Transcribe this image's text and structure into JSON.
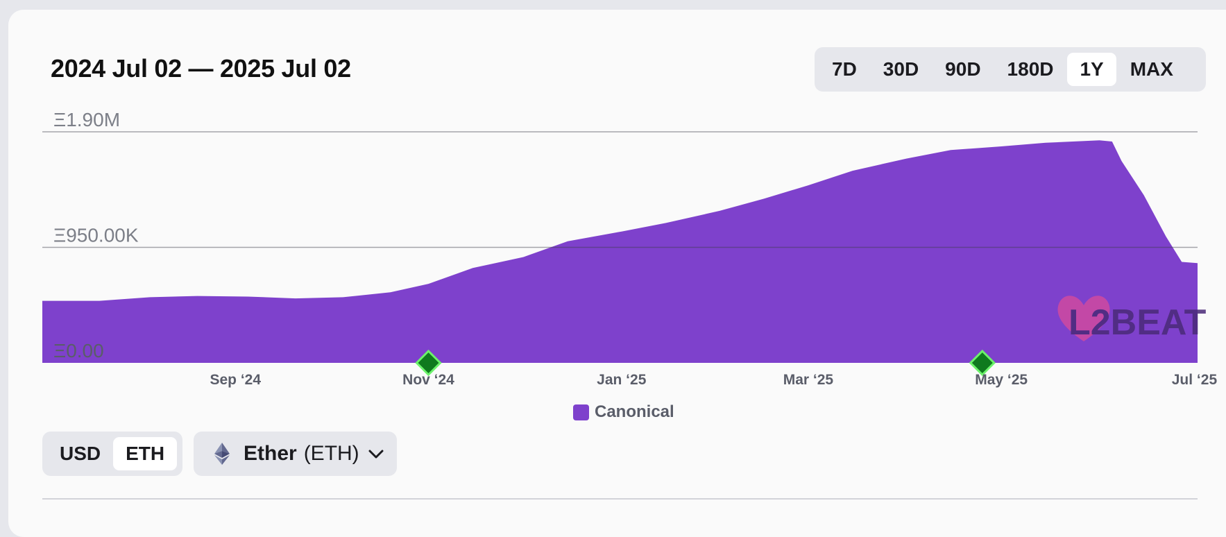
{
  "header": {
    "date_range": "2024 Jul 02 — 2025 Jul 02",
    "range_tabs": [
      {
        "label": "7D",
        "active": false
      },
      {
        "label": "30D",
        "active": false
      },
      {
        "label": "90D",
        "active": false
      },
      {
        "label": "180D",
        "active": false
      },
      {
        "label": "1Y",
        "active": true
      },
      {
        "label": "MAX",
        "active": false
      }
    ]
  },
  "chart_data": {
    "type": "area",
    "title": "",
    "xlabel": "",
    "ylabel": "",
    "y_tick_labels": [
      "Ξ1.90M",
      "Ξ950.00K",
      "Ξ0.00"
    ],
    "y_ticks": [
      1900000,
      950000,
      0
    ],
    "ylim": [
      0,
      1900000
    ],
    "x_tick_labels": [
      "Sep ‘24",
      "Nov ‘24",
      "Jan ‘25",
      "Mar ‘25",
      "May ‘25",
      "Jul ‘25"
    ],
    "x_tick_dates": [
      "2024-09-01",
      "2024-11-01",
      "2025-01-01",
      "2025-03-01",
      "2025-05-01",
      "2025-07-01"
    ],
    "xlim": [
      "2024-07-02",
      "2025-07-02"
    ],
    "grid": true,
    "legend_position": "bottom-center",
    "series": [
      {
        "name": "Canonical",
        "color": "#7e41cc",
        "x": [
          "2024-07-02",
          "2024-07-20",
          "2024-08-05",
          "2024-08-20",
          "2024-09-05",
          "2024-09-20",
          "2024-10-05",
          "2024-10-20",
          "2024-11-01",
          "2024-11-15",
          "2024-12-01",
          "2024-12-15",
          "2025-01-01",
          "2025-01-15",
          "2025-02-01",
          "2025-02-15",
          "2025-03-01",
          "2025-03-15",
          "2025-04-01",
          "2025-04-15",
          "2025-05-01",
          "2025-05-15",
          "2025-06-01",
          "2025-06-05",
          "2025-06-08",
          "2025-06-15",
          "2025-06-22",
          "2025-06-27",
          "2025-07-02"
        ],
        "values": [
          510000,
          510000,
          540000,
          550000,
          545000,
          530000,
          540000,
          580000,
          650000,
          780000,
          870000,
          1000000,
          1080000,
          1150000,
          1250000,
          1350000,
          1460000,
          1580000,
          1680000,
          1750000,
          1780000,
          1810000,
          1830000,
          1820000,
          1660000,
          1380000,
          1040000,
          830000,
          820000
        ]
      }
    ],
    "event_markers": [
      "2024-11-01",
      "2025-04-25"
    ],
    "legend": [
      "Canonical"
    ]
  },
  "watermark": {
    "text": "L2BEAT"
  },
  "controls": {
    "units": [
      {
        "label": "USD",
        "active": false
      },
      {
        "label": "ETH",
        "active": true
      }
    ],
    "token": {
      "name": "Ether",
      "symbol": "(ETH)",
      "icon": "ethereum-icon"
    }
  }
}
